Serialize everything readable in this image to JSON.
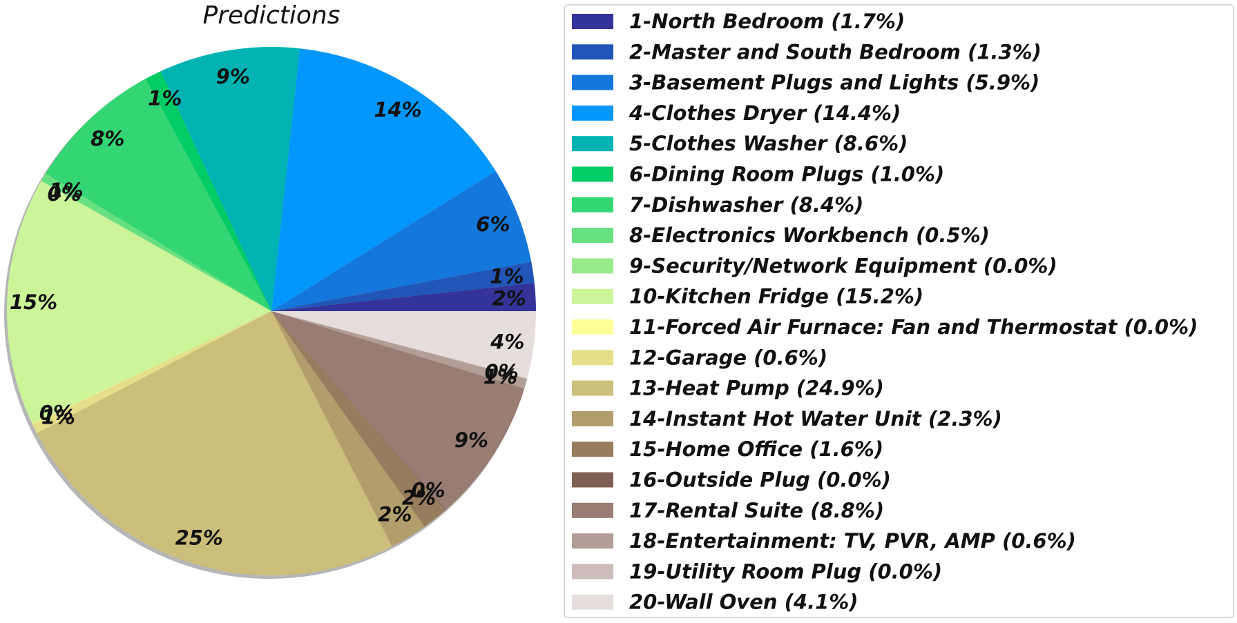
{
  "chart_data": {
    "type": "pie",
    "title": "Predictions",
    "slices": [
      {
        "name": "1-North Bedroom",
        "legend": "1-North Bedroom (1.7%)",
        "value": 1.7,
        "label": "2%",
        "color": "#333399"
      },
      {
        "name": "2-Master and South Bedroom",
        "legend": "2-Master and South Bedroom (1.3%)",
        "value": 1.3,
        "label": "1%",
        "color": "#2156b8"
      },
      {
        "name": "3-Basement Plugs and Lights",
        "legend": "3-Basement Plugs and Lights (5.9%)",
        "value": 5.9,
        "label": "6%",
        "color": "#1477dc"
      },
      {
        "name": "4-Clothes Dryer",
        "legend": "4-Clothes Dryer (14.4%)",
        "value": 14.4,
        "label": "14%",
        "color": "#0397fd"
      },
      {
        "name": "5-Clothes Washer",
        "legend": "5-Clothes Washer (8.6%)",
        "value": 8.6,
        "label": "9%",
        "color": "#01b3b3"
      },
      {
        "name": "6-Dining Room Plugs",
        "legend": "6-Dining Room Plugs (1.0%)",
        "value": 1.0,
        "label": "1%",
        "color": "#02cc66"
      },
      {
        "name": "7-Dishwasher",
        "legend": "7-Dishwasher (8.4%)",
        "value": 8.4,
        "label": "8%",
        "color": "#33d673"
      },
      {
        "name": "8-Electronics Workbench",
        "legend": "8-Electronics Workbench (0.5%)",
        "value": 0.5,
        "label": "1%",
        "color": "#66e080"
      },
      {
        "name": "9-Security/Network Equipment",
        "legend": "9-Security/Network Equipment (0.0%)",
        "value": 0.04,
        "label": "0%",
        "color": "#99ea8c"
      },
      {
        "name": "10-Kitchen Fridge",
        "legend": "10-Kitchen Fridge (15.2%)",
        "value": 15.2,
        "label": "15%",
        "color": "#ccf599"
      },
      {
        "name": "11-Forced Air Furnace: Fan and Thermostat",
        "legend": "11-Forced Air Furnace: Fan and Thermostat (0.0%)",
        "value": 0.04,
        "label": "0%",
        "color": "#ffff99"
      },
      {
        "name": "12-Garage",
        "legend": "12-Garage (0.6%)",
        "value": 0.6,
        "label": "1%",
        "color": "#e5df8a"
      },
      {
        "name": "13-Heat Pump",
        "legend": "13-Heat Pump (24.9%)",
        "value": 24.9,
        "label": "25%",
        "color": "#ccbf7b"
      },
      {
        "name": "14-Instant Hot Water Unit",
        "legend": "14-Instant Hot Water Unit (2.3%)",
        "value": 2.3,
        "label": "2%",
        "color": "#b29d6c"
      },
      {
        "name": "15-Home Office",
        "legend": "15-Home Office (1.6%)",
        "value": 1.6,
        "label": "2%",
        "color": "#987c5e"
      },
      {
        "name": "16-Outside Plug",
        "legend": "16-Outside Plug (0.0%)",
        "value": 0.04,
        "label": "0%",
        "color": "#7f5f52"
      },
      {
        "name": "17-Rental Suite",
        "legend": "17-Rental Suite (8.8%)",
        "value": 8.8,
        "label": "9%",
        "color": "#997c73"
      },
      {
        "name": "18-Entertainment: TV, PVR, AMP",
        "legend": "18-Entertainment: TV, PVR, AMP (0.6%)",
        "value": 0.6,
        "label": "1%",
        "color": "#b29e97"
      },
      {
        "name": "19-Utility Room Plug",
        "legend": "19-Utility Room Plug (0.0%)",
        "value": 0.04,
        "label": "0%",
        "color": "#ccbdba"
      },
      {
        "name": "20-Wall Oven",
        "legend": "20-Wall Oven (4.1%)",
        "value": 4.1,
        "label": "4%",
        "color": "#e5dedd"
      }
    ],
    "start_angle_deg": 0,
    "direction": "counterclockwise",
    "shadow": true,
    "legend_position": "right"
  }
}
